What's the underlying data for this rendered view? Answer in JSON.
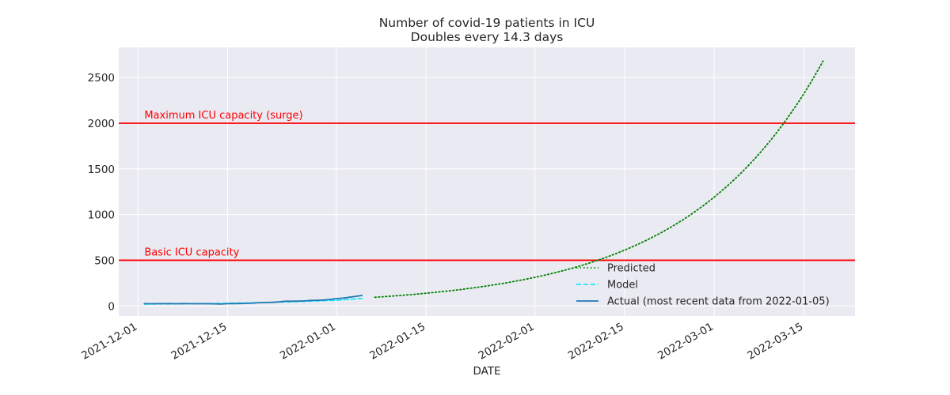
{
  "chart_data": {
    "type": "line",
    "title": "Number of covid-19 patients in ICU",
    "subtitle": "Doubles every 14.3 days",
    "xlabel": "DATE",
    "ylabel": "",
    "xlim": [
      "2021-11-28",
      "2022-03-23"
    ],
    "ylim": [
      -110,
      2830
    ],
    "grid": true,
    "legend_position": "lower-right",
    "x_ticks": [
      "2021-12-01",
      "2021-12-15",
      "2022-01-01",
      "2022-01-15",
      "2022-02-01",
      "2022-02-15",
      "2022-03-01",
      "2022-03-15"
    ],
    "y_ticks": [
      0,
      500,
      1000,
      1500,
      2000,
      2500
    ],
    "colors": {
      "background": "#eaeaf2",
      "grid": "#ffffff",
      "capacity_line": "#ff0000",
      "predicted": "#008000",
      "model": "#00e5ff",
      "actual": "#1f77b4"
    },
    "hlines": [
      {
        "y": 500,
        "label": "Basic ICU capacity",
        "label_x": "2021-12-02"
      },
      {
        "y": 2000,
        "label": "Maximum ICU capacity (surge)",
        "label_x": "2021-12-02"
      }
    ],
    "series": [
      {
        "name": "Predicted",
        "style": "dotted",
        "points": [
          [
            "2022-01-07",
            95
          ],
          [
            "2022-01-15",
            140
          ],
          [
            "2022-01-25",
            230
          ],
          [
            "2022-02-01",
            320
          ],
          [
            "2022-02-08",
            450
          ],
          [
            "2022-02-15",
            620
          ],
          [
            "2022-02-22",
            880
          ],
          [
            "2022-03-01",
            1200
          ],
          [
            "2022-03-05",
            1460
          ],
          [
            "2022-03-08",
            1690
          ],
          [
            "2022-03-12",
            2000
          ],
          [
            "2022-03-15",
            2300
          ],
          [
            "2022-03-18",
            2680
          ]
        ]
      },
      {
        "name": "Model",
        "style": "dashed",
        "points": [
          [
            "2021-12-02",
            20
          ],
          [
            "2021-12-08",
            23
          ],
          [
            "2021-12-14",
            28
          ],
          [
            "2021-12-20",
            36
          ],
          [
            "2021-12-26",
            47
          ],
          [
            "2022-01-01",
            62
          ],
          [
            "2022-01-05",
            82
          ]
        ]
      },
      {
        "name": "Actual (most recent data from 2022-01-05)",
        "style": "solid",
        "points": [
          [
            "2021-12-02",
            25
          ],
          [
            "2021-12-03",
            24
          ],
          [
            "2021-12-04",
            25
          ],
          [
            "2021-12-05",
            25
          ],
          [
            "2021-12-06",
            26
          ],
          [
            "2021-12-07",
            24
          ],
          [
            "2021-12-08",
            26
          ],
          [
            "2021-12-09",
            25
          ],
          [
            "2021-12-10",
            24
          ],
          [
            "2021-12-11",
            25
          ],
          [
            "2021-12-12",
            24
          ],
          [
            "2021-12-13",
            23
          ],
          [
            "2021-12-14",
            21
          ],
          [
            "2021-12-15",
            25
          ],
          [
            "2021-12-16",
            26
          ],
          [
            "2021-12-17",
            27
          ],
          [
            "2021-12-18",
            28
          ],
          [
            "2021-12-19",
            32
          ],
          [
            "2021-12-20",
            36
          ],
          [
            "2021-12-21",
            38
          ],
          [
            "2021-12-22",
            40
          ],
          [
            "2021-12-23",
            45
          ],
          [
            "2021-12-24",
            52
          ],
          [
            "2021-12-25",
            52
          ],
          [
            "2021-12-26",
            53
          ],
          [
            "2021-12-27",
            55
          ],
          [
            "2021-12-28",
            60
          ],
          [
            "2021-12-29",
            62
          ],
          [
            "2021-12-30",
            65
          ],
          [
            "2021-12-31",
            72
          ],
          [
            "2022-01-01",
            80
          ],
          [
            "2022-01-02",
            85
          ],
          [
            "2022-01-03",
            95
          ],
          [
            "2022-01-04",
            105
          ],
          [
            "2022-01-05",
            115
          ]
        ]
      }
    ]
  }
}
